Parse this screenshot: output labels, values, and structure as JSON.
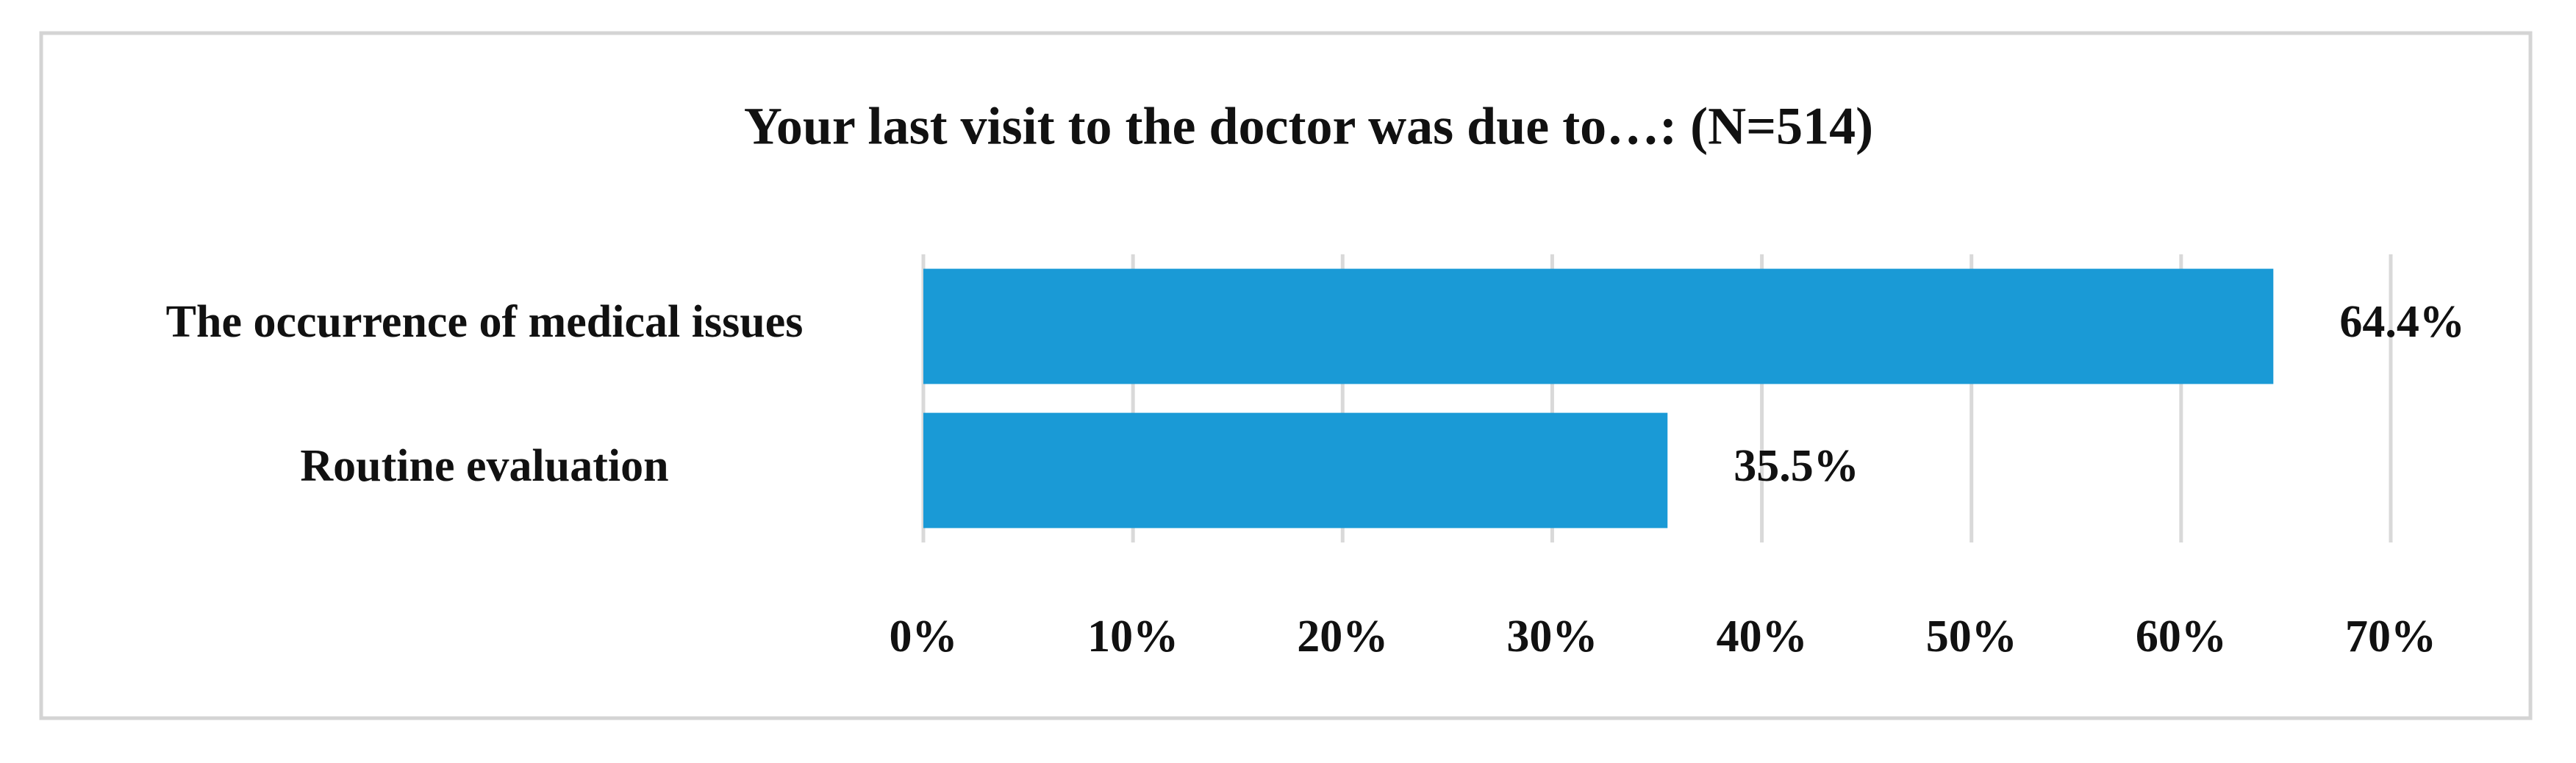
{
  "chart_data": {
    "type": "hbar",
    "title": "Your last visit to the doctor was due to…: (N=514)",
    "categories": [
      "The occurrence of medical issues",
      "Routine evaluation"
    ],
    "values": [
      64.4,
      35.5
    ],
    "value_labels": [
      "64.4%",
      "35.5%"
    ],
    "color": "#1a9ad6",
    "xlim": [
      0,
      70
    ],
    "xticks": [
      {
        "value": 0,
        "label": "0%"
      },
      {
        "value": 10,
        "label": "10%"
      },
      {
        "value": 20,
        "label": "20%"
      },
      {
        "value": 30,
        "label": "30%"
      },
      {
        "value": 40,
        "label": "40%"
      },
      {
        "value": 50,
        "label": "50%"
      },
      {
        "value": 60,
        "label": "60%"
      },
      {
        "value": 70,
        "label": "70%"
      }
    ],
    "grid": true
  }
}
